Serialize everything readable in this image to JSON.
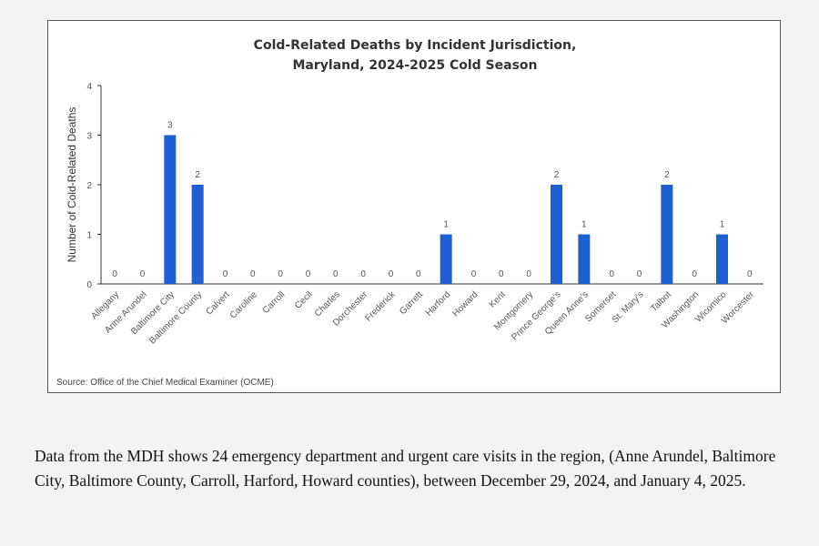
{
  "chart_data": {
    "type": "bar",
    "title_line1": "Cold-Related Deaths by Incident Jurisdiction,",
    "title_line2": "Maryland, 2024-2025 Cold Season",
    "ylabel": "Number of Cold-Related Deaths",
    "xlabel": "",
    "ylim": [
      0,
      4
    ],
    "yticks": [
      0,
      1,
      2,
      3,
      4
    ],
    "grid": false,
    "bar_color": "#1f5fd1",
    "categories": [
      "Allegany",
      "Anne Arundel",
      "Baltimore City",
      "Baltimore County",
      "Calvert",
      "Caroline",
      "Carroll",
      "Cecil",
      "Charles",
      "Dorchester",
      "Frederick",
      "Garrett",
      "Harford",
      "Howard",
      "Kent",
      "Montgomery",
      "Prince George's",
      "Queen Anne's",
      "Somerset",
      "St. Mary's",
      "Talbot",
      "Washington",
      "Wicomico",
      "Worcester"
    ],
    "values": [
      0,
      0,
      3,
      2,
      0,
      0,
      0,
      0,
      0,
      0,
      0,
      0,
      1,
      0,
      0,
      0,
      2,
      1,
      0,
      0,
      2,
      0,
      1,
      0
    ],
    "source": "Source: Office of the Chief Medical Examiner (OCME)"
  },
  "caption": "Data from the MDH shows 24 emergency department and urgent care visits in the region, (Anne Arundel, Baltimore City, Baltimore County, Carroll, Harford, Howard counties), between December 29, 2024, and January 4, 2025."
}
